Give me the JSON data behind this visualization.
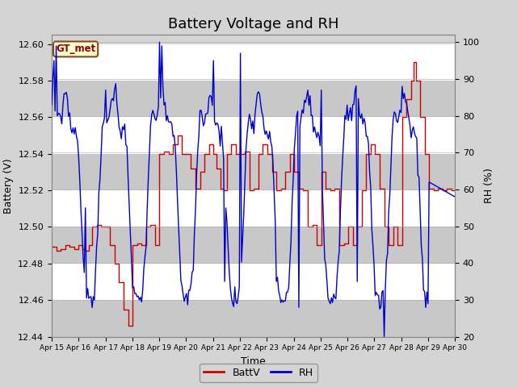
{
  "title": "Battery Voltage and RH",
  "xlabel": "Time",
  "ylabel_left": "Battery (V)",
  "ylabel_right": "RH (%)",
  "label_box": "GT_met",
  "ylim_left": [
    12.44,
    12.605
  ],
  "ylim_right": [
    20,
    102
  ],
  "yticks_left": [
    12.44,
    12.46,
    12.48,
    12.5,
    12.52,
    12.54,
    12.56,
    12.58,
    12.6
  ],
  "yticks_right": [
    20,
    30,
    40,
    50,
    60,
    70,
    80,
    90,
    100
  ],
  "xtick_labels": [
    "Apr 15",
    "Apr 16",
    "Apr 17",
    "Apr 18",
    "Apr 19",
    "Apr 20",
    "Apr 21",
    "Apr 22",
    "Apr 23",
    "Apr 24",
    "Apr 25",
    "Apr 26",
    "Apr 27",
    "Apr 28",
    "Apr 29",
    "Apr 30"
  ],
  "color_batt": "#cc0000",
  "color_rh": "#0000cc",
  "legend_batt": "BattV",
  "legend_rh": "RH",
  "bg_color": "#d4d4d4",
  "plot_bg": "#d4d4d4",
  "band_light": "#e8e8e8",
  "band_dark": "#c8c8c8",
  "title_fontsize": 13,
  "label_fontsize": 9,
  "tick_fontsize": 8
}
